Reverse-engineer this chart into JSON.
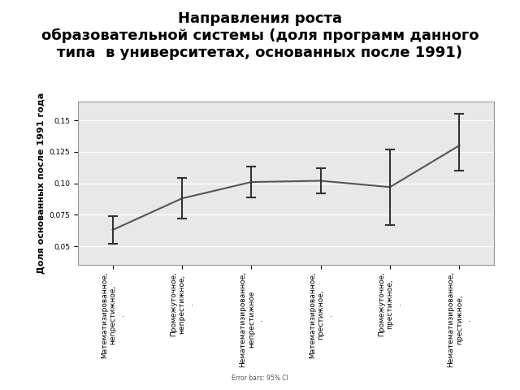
{
  "title": "Направления роста\nобразовательной системы (доля программ данного\nтипа  в университетах, основанных после 1991)",
  "ylabel": "Доля основанных после 1991 года",
  "x_positions": [
    1,
    2,
    3,
    4,
    5,
    6
  ],
  "y_values": [
    0.063,
    0.088,
    0.101,
    0.102,
    0.097,
    0.13
  ],
  "y_err_lower": [
    0.011,
    0.016,
    0.012,
    0.01,
    0.03,
    0.02
  ],
  "y_err_upper": [
    0.011,
    0.016,
    0.012,
    0.01,
    0.03,
    0.025
  ],
  "x_tick_labels": [
    "Математизированное,\nнепрестижное,\n.",
    "Промежуточное,\nнепрестижное,\n.",
    "Нематематизированное,\nнепрестижное\n.",
    "Математизированное,\nпрестижное,\n.",
    "Промежуточное,\nпрестижное,\n.",
    "Нематематизированное,\nпрестижное,\n."
  ],
  "yticks": [
    0.05,
    0.075,
    0.1,
    0.125,
    0.15
  ],
  "ylim": [
    0.035,
    0.165
  ],
  "line_color": "#555555",
  "errorbar_color": "#333333",
  "bg_color": "#e8e8e8",
  "fig_bg_color": "#ffffff",
  "title_fontsize": 13,
  "axis_label_fontsize": 8,
  "tick_fontsize": 6.5
}
